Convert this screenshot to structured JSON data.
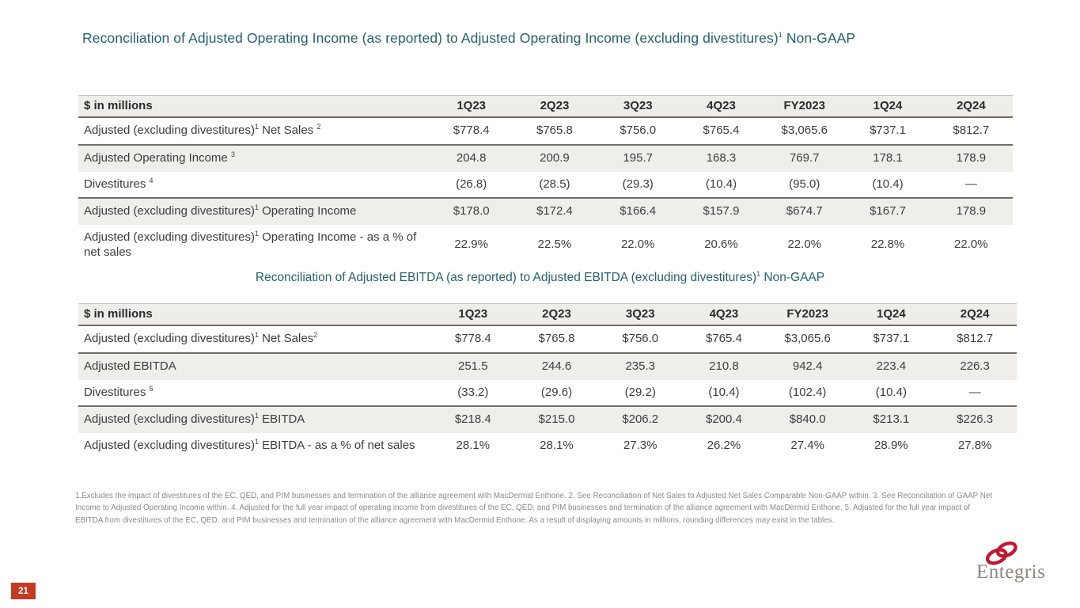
{
  "slide": {
    "title": "Reconciliation of Adjusted Operating Income (as reported) to Adjusted Operating Income (excluding divestitures)^1  Non-GAAP",
    "ebitda_title": "Reconciliation of Adjusted EBITDA (as reported) to Adjusted EBITDA (excluding divestitures)^1 Non-GAAP",
    "page_number": "21",
    "logo_text": "Entegris",
    "footnotes": "1.Excludes the impact of divestitures of the EC, QED, and PIM businesses and termination of the alliance agreement with MacDermid Enthone.  2. See Reconciliation of Net Sales to Adjusted Net Sales Comparable Non-GAAP within.  3. See Reconciliation of GAAP Net Income to Adjusted Operating Income within.  4. Adjusted for the full year impact of operating income from divestitures of the EC, QED, and PIM businesses and termination of the alliance agreement with MacDermid Enthone.  5. Adjusted for the full year impact of EBITDA from divestitures of the EC, QED, and PIM businesses and termination of the alliance agreement with MacDermid Enthone.  As a result of displaying amounts in millions, rounding differences may exist in the tables.",
    "colors": {
      "accent_teal": "#26616F",
      "logo_red": "#C01933",
      "page_badge_red": "#C23B22",
      "row_shade": "#EFEEEB",
      "rule_gray": "#6E6C69"
    }
  },
  "tables": [
    {
      "id": "tbl-oi",
      "name": "operating-income-reconciliation-table",
      "columns": [
        "$ in millions",
        "1Q23",
        "2Q23",
        "3Q23",
        "4Q23",
        "FY2023",
        "1Q24",
        "2Q24"
      ],
      "rows": [
        {
          "label": "Adjusted (excluding divestitures)^1 Net Sales ^2",
          "values": [
            "$778.4",
            "$765.8",
            "$756.0",
            "$765.4",
            "$3,065.6",
            "$737.1",
            "$812.7"
          ],
          "shaded": false,
          "rule": true
        },
        {
          "label": "Adjusted Operating Income ^3",
          "values": [
            "204.8",
            "200.9",
            "195.7",
            "168.3",
            "769.7",
            "178.1",
            "178.9"
          ],
          "shaded": true,
          "rule": false
        },
        {
          "label": "Divestitures ^4",
          "values": [
            "(26.8)",
            "(28.5)",
            "(29.3)",
            "(10.4)",
            "(95.0)",
            "(10.4)",
            "—"
          ],
          "shaded": false,
          "rule": true
        },
        {
          "label": "Adjusted (excluding divestitures)^1 Operating Income",
          "values": [
            "$178.0",
            "$172.4",
            "$166.4",
            "$157.9",
            "$674.7",
            "$167.7",
            "178.9"
          ],
          "shaded": true,
          "rule": false
        },
        {
          "label": "Adjusted (excluding divestitures)^1 Operating Income - as a % of net sales",
          "values": [
            "22.9%",
            "22.5%",
            "22.0%",
            "20.6%",
            "22.0%",
            "22.8%",
            "22.0%"
          ],
          "shaded": false,
          "rule": false
        }
      ]
    },
    {
      "id": "tbl-ebitda",
      "name": "ebitda-reconciliation-table",
      "columns": [
        "$ in millions",
        "1Q23",
        "2Q23",
        "3Q23",
        "4Q23",
        "FY2023",
        "1Q24",
        "2Q24"
      ],
      "rows": [
        {
          "label": "Adjusted (excluding divestitures)^1 Net Sales^2",
          "values": [
            "$778.4",
            "$765.8",
            "$756.0",
            "$765.4",
            "$3,065.6",
            "$737.1",
            "$812.7"
          ],
          "shaded": false,
          "rule": true
        },
        {
          "label": "Adjusted EBITDA",
          "values": [
            "251.5",
            "244.6",
            "235.3",
            "210.8",
            "942.4",
            "223.4",
            "226.3"
          ],
          "shaded": true,
          "rule": false
        },
        {
          "label": "Divestitures ^5",
          "values": [
            "(33.2)",
            "(29.6)",
            "(29.2)",
            "(10.4)",
            "(102.4)",
            "(10.4)",
            "—"
          ],
          "shaded": false,
          "rule": true
        },
        {
          "label": "Adjusted (excluding divestitures)^1 EBITDA",
          "values": [
            "$218.4",
            "$215.0",
            "$206.2",
            "$200.4",
            "$840.0",
            "$213.1",
            "$226.3"
          ],
          "shaded": true,
          "rule": false
        },
        {
          "label": "Adjusted (excluding divestitures)^1 EBITDA - as a % of net sales",
          "values": [
            "28.1%",
            "28.1%",
            "27.3%",
            "26.2%",
            "27.4%",
            "28.9%",
            "27.8%"
          ],
          "shaded": false,
          "rule": false
        }
      ]
    }
  ]
}
